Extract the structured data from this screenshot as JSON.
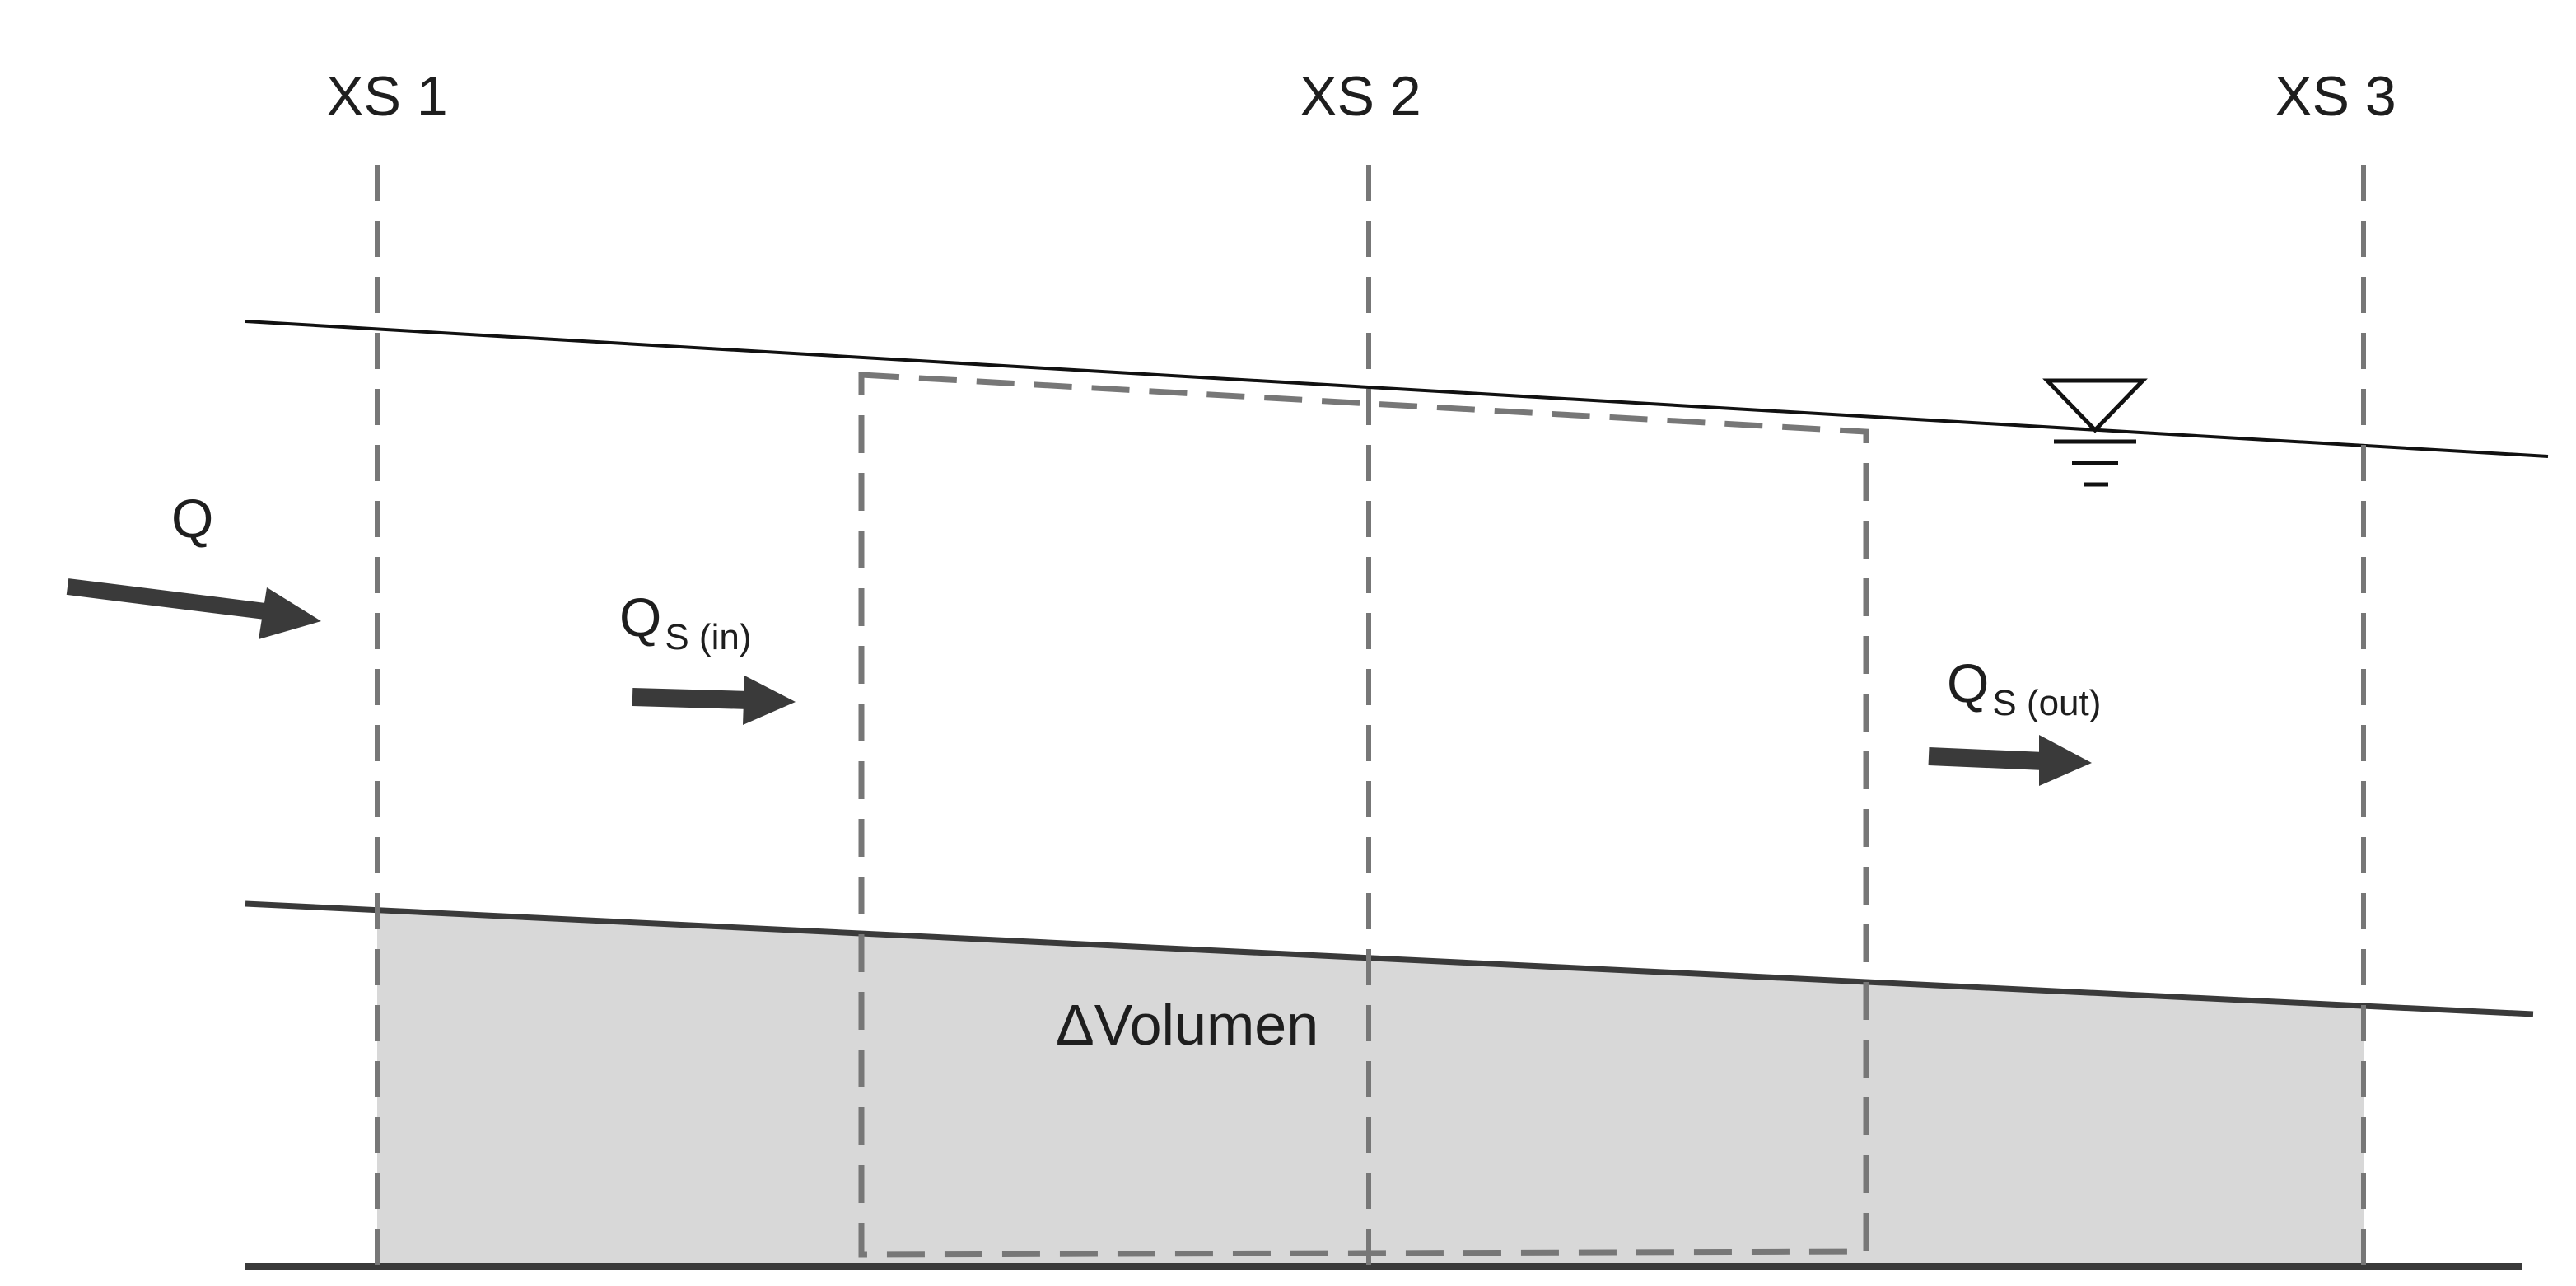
{
  "diagram": {
    "cross_sections": [
      {
        "label": "XS 1"
      },
      {
        "label": "XS 2"
      },
      {
        "label": "XS 3"
      }
    ],
    "flows": {
      "water": {
        "symbol": "Q"
      },
      "sediment_in": {
        "symbol": "Q",
        "subscript": "S (in)"
      },
      "sediment_out": {
        "symbol": "Q",
        "subscript": "S (out)"
      }
    },
    "volume_label": "ΔVolumen",
    "colors": {
      "sediment_fill": "#d8d8d8",
      "dashed_lines": "#777777",
      "bed_line": "#3a3a3a",
      "arrows": "#3a3a3a",
      "water_surface": "#111111"
    }
  }
}
